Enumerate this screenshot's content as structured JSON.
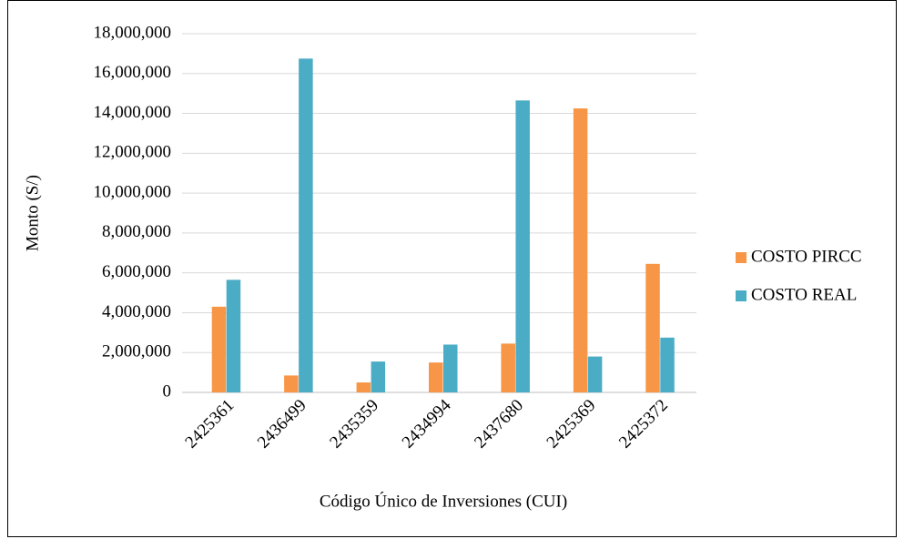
{
  "chart_data": {
    "type": "bar",
    "categories": [
      "2425361",
      "2436499",
      "2435359",
      "2434994",
      "2437680",
      "2425369",
      "2425372"
    ],
    "series": [
      {
        "name": "COSTO PIRCC",
        "color": "#f79646",
        "values": [
          4300000,
          850000,
          500000,
          1500000,
          2450000,
          14250000,
          6450000
        ]
      },
      {
        "name": "COSTO REAL",
        "color": "#4bacc6",
        "values": [
          5650000,
          16750000,
          1550000,
          2400000,
          14650000,
          1800000,
          2750000
        ]
      }
    ],
    "ylim": [
      0,
      18000000
    ],
    "yticks": [
      0,
      {
        "value": 2000000,
        "label": "2,000,000"
      },
      {
        "value": 4000000,
        "label": "4,000,000"
      },
      {
        "value": 6000000,
        "label": "6,000,000"
      },
      {
        "value": 8000000,
        "label": "8,000,000"
      },
      {
        "value": 10000000,
        "label": "10,000,000"
      },
      {
        "value": 12000000,
        "label": "12,000,000"
      },
      {
        "value": 14000000,
        "label": "14,000,000"
      },
      {
        "value": 16000000,
        "label": "16,000,000"
      },
      {
        "value": 18000000,
        "label": "18,000,000"
      }
    ],
    "ylabel": "Monto (S/)",
    "xlabel": "Código Único de Inversiones (CUI)",
    "grid": true,
    "legend": "right"
  }
}
